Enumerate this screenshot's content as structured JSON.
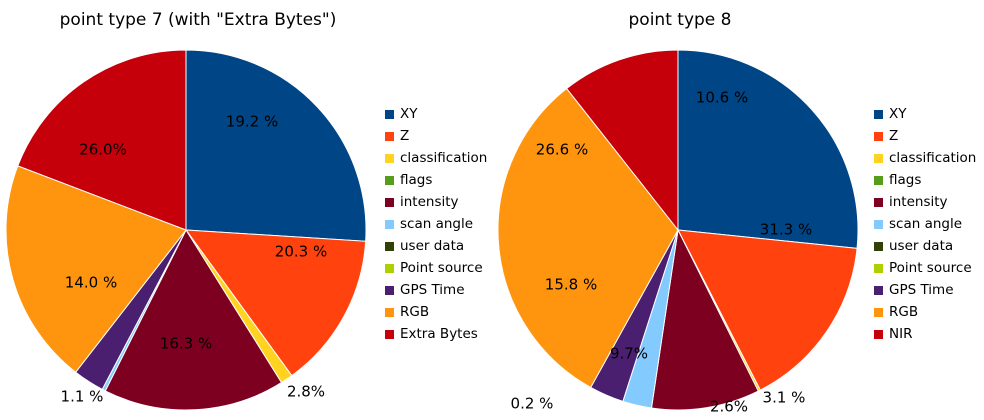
{
  "chart_data": [
    {
      "type": "pie",
      "title": "point type 7 (with \"Extra Bytes\")",
      "slices": [
        {
          "name": "XY",
          "value": 26.0,
          "color": "#004586",
          "label": "26.0%"
        },
        {
          "name": "Z",
          "value": 14.0,
          "color": "#ff420e",
          "label": "14.0 %"
        },
        {
          "name": "classification",
          "value": 1.1,
          "color": "#ffd320",
          "label": "1.1 %"
        },
        {
          "name": "flags",
          "value": 0.0,
          "color": "#579d1c",
          "label": ""
        },
        {
          "name": "intensity",
          "value": 16.3,
          "color": "#7e0021",
          "label": "16.3 %"
        },
        {
          "name": "scan angle",
          "value": 0.3,
          "color": "#83caff",
          "label": ""
        },
        {
          "name": "user data",
          "value": 0.0,
          "color": "#314004",
          "label": ""
        },
        {
          "name": "Point source",
          "value": 0.0,
          "color": "#aecf00",
          "label": ""
        },
        {
          "name": "GPS Time",
          "value": 2.8,
          "color": "#4b1f6f",
          "label": "2.8%"
        },
        {
          "name": "RGB",
          "value": 20.3,
          "color": "#ff950e",
          "label": "20.3 %"
        },
        {
          "name": "Extra Bytes",
          "value": 19.2,
          "color": "#c5000b",
          "label": "19.2 %"
        }
      ],
      "legend_position": "right"
    },
    {
      "type": "pie",
      "title": "point type 8",
      "slices": [
        {
          "name": "XY",
          "value": 26.6,
          "color": "#004586",
          "label": "26.6 %"
        },
        {
          "name": "Z",
          "value": 15.8,
          "color": "#ff420e",
          "label": "15.8 %"
        },
        {
          "name": "classification",
          "value": 0.2,
          "color": "#ffd320",
          "label": "0.2 %"
        },
        {
          "name": "flags",
          "value": 0.0,
          "color": "#579d1c",
          "label": ""
        },
        {
          "name": "intensity",
          "value": 9.7,
          "color": "#7e0021",
          "label": "9.7%"
        },
        {
          "name": "scan angle",
          "value": 2.6,
          "color": "#83caff",
          "label": "2.6%"
        },
        {
          "name": "user data",
          "value": 0.0,
          "color": "#314004",
          "label": ""
        },
        {
          "name": "Point source",
          "value": 0.0,
          "color": "#aecf00",
          "label": ""
        },
        {
          "name": "GPS Time",
          "value": 3.1,
          "color": "#4b1f6f",
          "label": "3.1 %"
        },
        {
          "name": "RGB",
          "value": 31.3,
          "color": "#ff950e",
          "label": "31.3 %"
        },
        {
          "name": "NIR",
          "value": 10.6,
          "color": "#c5000b",
          "label": "10.6 %"
        }
      ],
      "legend_position": "right"
    }
  ]
}
